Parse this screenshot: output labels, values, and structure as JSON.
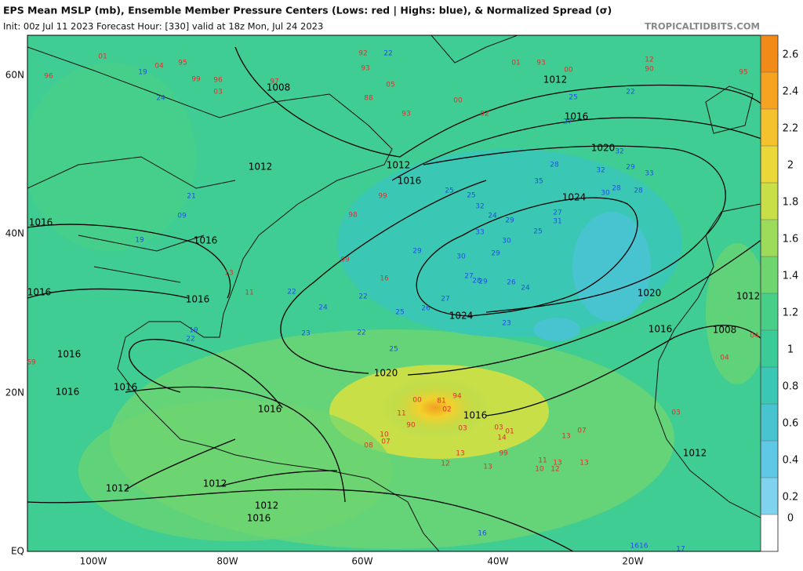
{
  "header": {
    "title": "EPS Mean MSLP (mb), Ensemble Member Pressure Centers (Lows: red | Highs: blue), & Normalized Spread (σ)",
    "subtitle": "Init: 00z Jul 11 2023   Forecast Hour: [330]   valid at 18z Mon, Jul 24 2023",
    "credit": "TROPICALTIDBITS.COM"
  },
  "axes": {
    "lon_labels": [
      "100W",
      "80W",
      "60W",
      "40W",
      "20W"
    ],
    "lat_labels": [
      "60N",
      "40N",
      "20N",
      "EQ"
    ]
  },
  "colorbar": {
    "range": [
      0,
      2.8
    ],
    "ticks": [
      0,
      0.2,
      0.4,
      0.6,
      0.8,
      1,
      1.2,
      1.4,
      1.6,
      1.8,
      2,
      2.2,
      2.4,
      2.6
    ],
    "colors": [
      "#ffffff",
      "#7fd3ee",
      "#5fc8e6",
      "#47c4cf",
      "#3ac7b3",
      "#3acb99",
      "#47cf87",
      "#6fd56f",
      "#9ddb5a",
      "#c8df48",
      "#e9d838",
      "#f4c22c",
      "#f6a321",
      "#f28a18"
    ]
  },
  "isobar_labels": [
    "1008",
    "1012",
    "1016",
    "1020",
    "1024",
    "1012",
    "1016",
    "1012",
    "1016",
    "1016",
    "1016",
    "1016",
    "1024",
    "1020",
    "1016",
    "1008",
    "1012",
    "1020",
    "1016",
    "1016",
    "1016",
    "1016",
    "1016",
    "1012",
    "1012",
    "1012",
    "1016",
    "1012"
  ],
  "lows": [
    "96",
    "01",
    "04",
    "95",
    "99",
    "03",
    "96",
    "97",
    "92",
    "93",
    "05",
    "88",
    "93",
    "01",
    "93",
    "00",
    "12",
    "90",
    "95",
    "02",
    "00",
    "99",
    "98",
    "09",
    "16",
    "11",
    "13",
    "00",
    "81",
    "94",
    "02",
    "11",
    "90",
    "03",
    "10",
    "07",
    "08",
    "03",
    "01",
    "14",
    "99",
    "13",
    "07",
    "13",
    "12",
    "13",
    "11",
    "13",
    "10",
    "12",
    "13",
    "69",
    "04",
    "03",
    "04"
  ],
  "highs": [
    "22",
    "19",
    "24",
    "25",
    "22",
    "27",
    "32",
    "28",
    "32",
    "29",
    "33",
    "35",
    "28",
    "30",
    "28",
    "25",
    "25",
    "32",
    "24",
    "29",
    "27",
    "31",
    "33",
    "30",
    "25",
    "29",
    "30",
    "29",
    "27",
    "28",
    "29",
    "26",
    "24",
    "27",
    "26",
    "23",
    "22",
    "24",
    "25",
    "22",
    "25",
    "23",
    "22",
    "19",
    "19",
    "22",
    "16",
    "1616",
    "17",
    "21",
    "09"
  ]
}
